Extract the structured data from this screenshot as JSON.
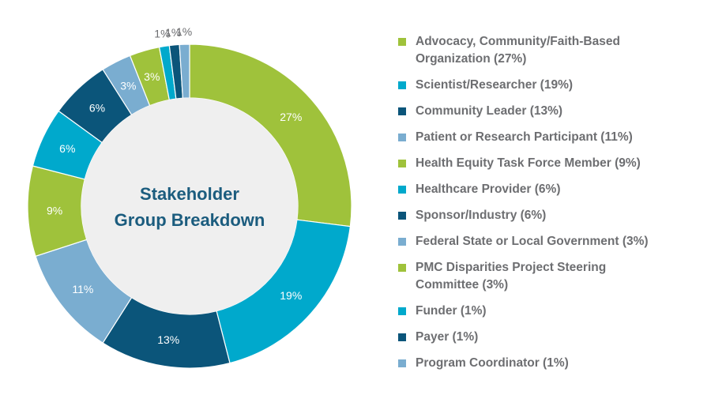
{
  "chart_data": {
    "type": "pie",
    "title": "Stakeholder Group Breakdown",
    "title_lines": [
      "Stakeholder",
      "Group Breakdown"
    ],
    "slices": [
      {
        "label": "Advocacy, Community/Faith-Based Organization (27%)",
        "value": 27,
        "value_label": "27%",
        "color": "#9fc23b"
      },
      {
        "label": "Scientist/Researcher (19%)",
        "value": 19,
        "value_label": "19%",
        "color": "#00a9cc"
      },
      {
        "label": "Community Leader (13%)",
        "value": 13,
        "value_label": "13%",
        "color": "#0b557a"
      },
      {
        "label": "Patient or Research Participant (11%)",
        "value": 11,
        "value_label": "11%",
        "color": "#7aadd0"
      },
      {
        "label": "Health Equity Task Force Member (9%)",
        "value": 9,
        "value_label": "9%",
        "color": "#9fc23b"
      },
      {
        "label": "Healthcare Provider (6%)",
        "value": 6,
        "value_label": "6%",
        "color": "#00a9cc"
      },
      {
        "label": "Sponsor/Industry (6%)",
        "value": 6,
        "value_label": "6%",
        "color": "#0b557a"
      },
      {
        "label": "Federal State or Local Government (3%)",
        "value": 3,
        "value_label": "3%",
        "color": "#7aadd0"
      },
      {
        "label": "PMC Disparities Project Steering Committee (3%)",
        "value": 3,
        "value_label": "3%",
        "color": "#9fc23b"
      },
      {
        "label": "Funder (1%)",
        "value": 1,
        "value_label": "1%",
        "color": "#00a9cc"
      },
      {
        "label": "Payer (1%)",
        "value": 1,
        "value_label": "1%",
        "color": "#0b557a"
      },
      {
        "label": "Program Coordinator (1%)",
        "value": 1,
        "value_label": "1%",
        "color": "#7aadd0"
      }
    ],
    "legend_position": "right",
    "donut": true
  }
}
